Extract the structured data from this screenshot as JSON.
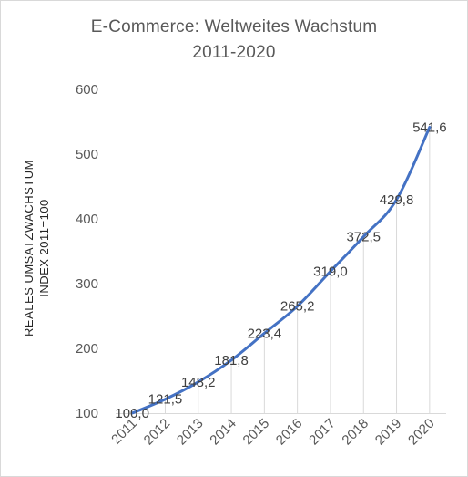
{
  "chart_data": {
    "type": "line",
    "title_line1": "E-Commerce:  Weltweites  Wachstum",
    "title_line2": "2011-2020",
    "ylabel_line1": "REALES UMSATZWACHSTUM",
    "ylabel_line2": "INDEX 2011=100",
    "xlabel": "",
    "ylim": [
      100,
      600
    ],
    "yticks": [
      "100",
      "200",
      "300",
      "400",
      "500",
      "600"
    ],
    "categories": [
      "2011",
      "2012",
      "2013",
      "2014",
      "2015",
      "2016",
      "2017",
      "2018",
      "2019",
      "2020"
    ],
    "values": [
      100.0,
      121.5,
      148.2,
      181.8,
      223.4,
      265.2,
      319.0,
      372.5,
      429.8,
      541.6
    ],
    "data_labels": [
      "100,0",
      "121,5",
      "148,2",
      "181,8",
      "223,4",
      "265,2",
      "319,0",
      "372,5",
      "429,8",
      "541,6"
    ],
    "line_color": "#4472c4",
    "grid": false,
    "drop_lines": true,
    "legend": "none"
  }
}
